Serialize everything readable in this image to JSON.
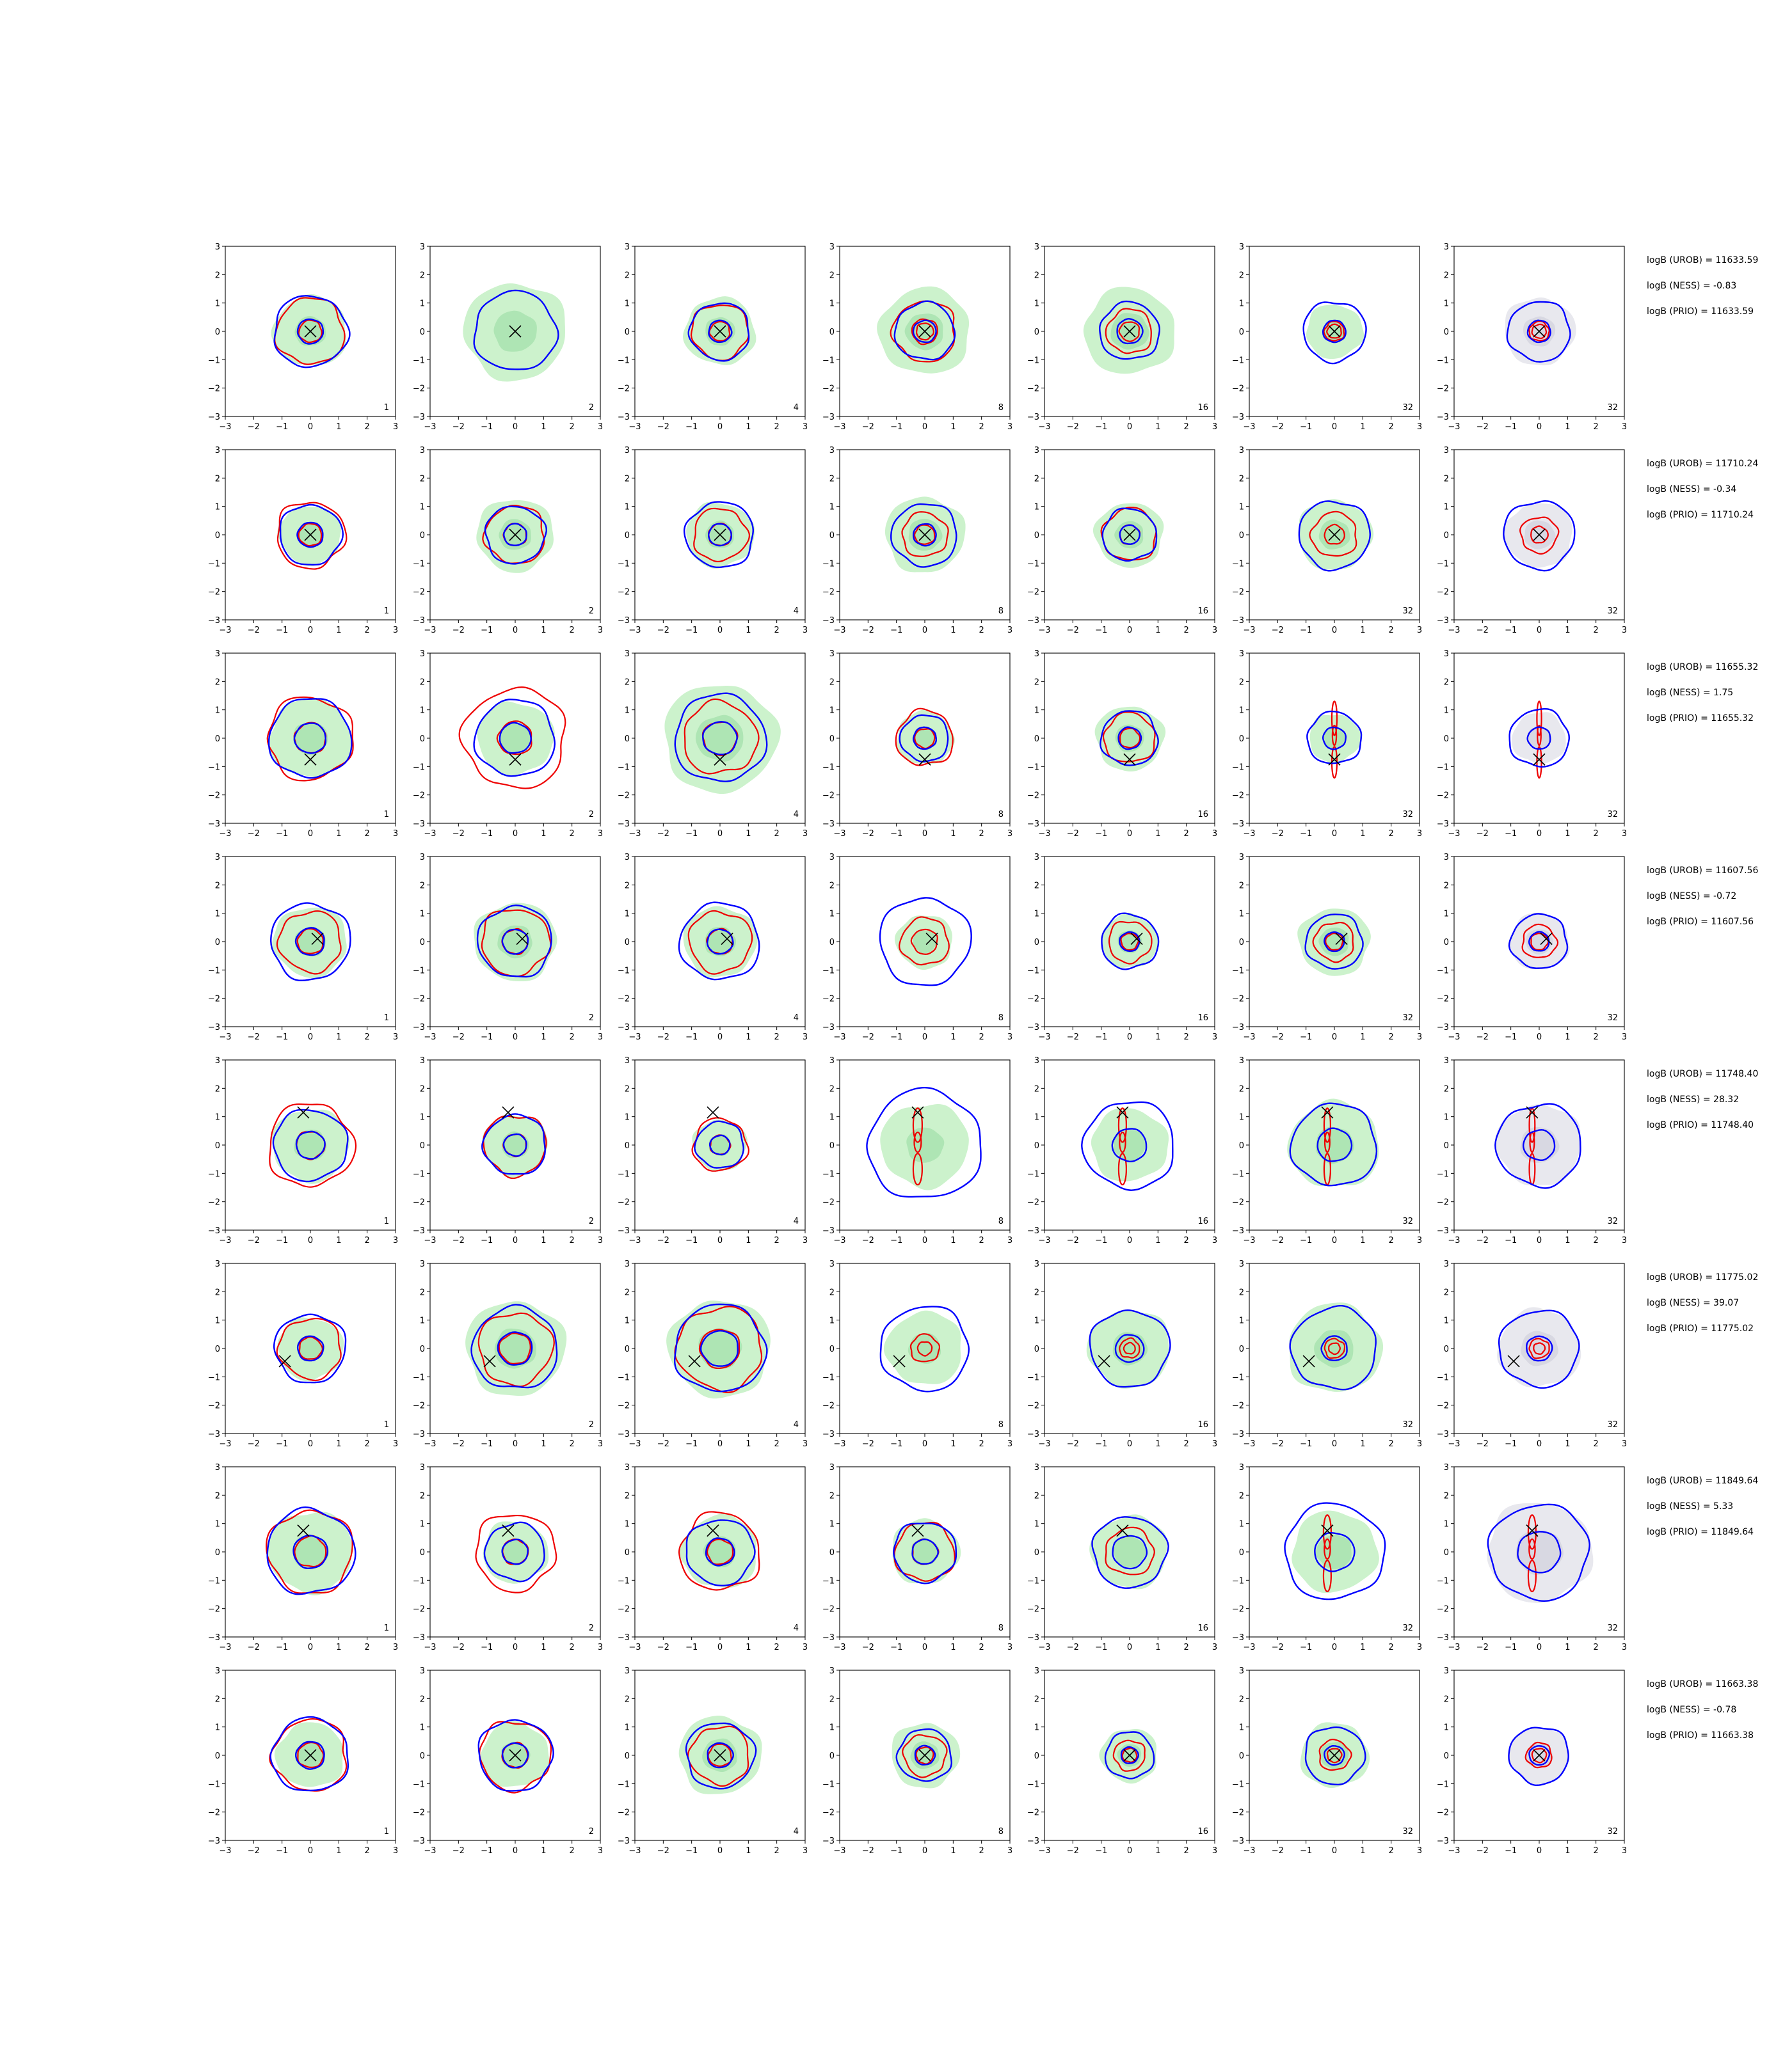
{
  "figure": {
    "rows": 8,
    "cols": 7,
    "xlim": [
      -3,
      3
    ],
    "ylim": [
      -3,
      3
    ],
    "ticks": [
      "−3",
      "−2",
      "−1",
      "0",
      "1",
      "2",
      "3"
    ],
    "tick_values": [
      -3,
      -2,
      -1,
      0,
      1,
      2,
      3
    ],
    "column_labels": [
      "1",
      "2",
      "4",
      "8",
      "16",
      "32",
      "32"
    ],
    "colors": {
      "blue": "#0000ff",
      "red": "#ee0000",
      "green_fill": "#ccf2cc",
      "green_core": "#aee5b4",
      "gray_fill": "#e8e8ee",
      "gray_core": "#d8d8e2",
      "marker": "#000000"
    }
  },
  "chart_data": {
    "type": "contour-grid",
    "panels_per_row": 7,
    "rows": [
      {
        "logb_urob": "logB (UROB) = 11633.59",
        "logb_ness": "logB (NESS) = -0.83",
        "logb_prio": "logB (PRIO) = 11633.59",
        "marker": [
          0.0,
          0.0
        ],
        "panels": [
          {
            "green": 1.3,
            "blue": [
              1.3,
              0.45
            ],
            "red": [
              1.2,
              0.4
            ]
          },
          {
            "green": 1.8,
            "blue": [
              1.45
            ],
            "red": []
          },
          {
            "green": 1.25,
            "blue": [
              1.05,
              0.4
            ],
            "red": [
              1.0,
              0.35
            ]
          },
          {
            "green": 1.6,
            "blue": [
              1.05,
              0.4
            ],
            "red": [
              1.1,
              0.45,
              0.3
            ]
          },
          {
            "green": 1.6,
            "blue": [
              1.05,
              0.45
            ],
            "red": [
              0.8,
              0.35
            ]
          },
          {
            "green": 1.0,
            "blue": [
              1.1,
              0.4
            ],
            "red": [
              0.35,
              0.25
            ]
          },
          {
            "gray": 1.25,
            "blue": [
              1.1,
              0.4
            ],
            "red": [
              0.35,
              0.25
            ]
          }
        ]
      },
      {
        "logb_urob": "logB (UROB) = 11710.24",
        "logb_ness": "logB (NESS) = -0.34",
        "logb_prio": "logB (PRIO) = 11710.24",
        "marker": [
          0.0,
          0.0
        ],
        "panels": [
          {
            "green": 1.1,
            "blue": [
              1.1,
              0.45
            ],
            "red": [
              1.2,
              0.4
            ]
          },
          {
            "green": 1.35,
            "blue": [
              1.05,
              0.4
            ],
            "red": [
              1.05,
              0.4
            ]
          },
          {
            "green": 1.2,
            "blue": [
              1.2,
              0.4
            ],
            "red": [
              0.95,
              0.4
            ]
          },
          {
            "green": 1.4,
            "blue": [
              1.15,
              0.4
            ],
            "red": [
              0.8,
              0.35
            ]
          },
          {
            "green": 1.2,
            "blue": [
              0.95,
              0.35
            ],
            "red": [
              0.95,
              0.35
            ]
          },
          {
            "green": 1.3,
            "blue": [
              1.25
            ],
            "red": [
              0.8,
              0.35
            ]
          },
          {
            "gray": 1.2,
            "blue": [
              1.25
            ],
            "red": [
              0.65,
              0.3
            ]
          }
        ]
      },
      {
        "logb_urob": "logB (UROB) = 11655.32",
        "logb_ness": "logB (NESS) = 1.75",
        "logb_prio": "logB (PRIO) = 11655.32",
        "marker": [
          0.0,
          -0.75
        ],
        "panels": [
          {
            "green": 1.45,
            "blue": [
              1.45,
              0.55
            ],
            "red": [
              1.5,
              0.55
            ]
          },
          {
            "green": 1.35,
            "blue": [
              1.4,
              0.55
            ],
            "red": [
              1.8,
              0.6
            ]
          },
          {
            "green": 2.0,
            "blue": [
              1.6,
              0.6
            ],
            "red": [
              1.3,
              0.6
            ]
          },
          {
            "green": 1.0,
            "blue": [
              0.85,
              0.4
            ],
            "red": [
              1.0,
              0.35
            ]
          },
          {
            "green": 1.2,
            "blue": [
              1.0,
              0.4
            ],
            "red": [
              0.9,
              0.35
            ]
          },
          {
            "green": 0.9,
            "blue": [
              0.95,
              0.4
            ],
            "red": [
              0.2
            ]
          },
          {
            "gray": 0.95,
            "blue": [
              1.05,
              0.4
            ],
            "red": [
              0.18
            ]
          }
        ]
      },
      {
        "logb_urob": "logB (UROB) = 11607.56",
        "logb_ness": "logB (NESS) = -0.72",
        "logb_prio": "logB (PRIO) = 11607.56",
        "marker": [
          0.25,
          0.1
        ],
        "panels": [
          {
            "green": 1.3,
            "blue": [
              1.4,
              0.5
            ],
            "red": [
              1.1,
              0.45
            ]
          },
          {
            "green": 1.45,
            "blue": [
              1.3,
              0.45
            ],
            "red": [
              1.2,
              0.45
            ]
          },
          {
            "green": 1.3,
            "blue": [
              1.4,
              0.45
            ],
            "red": [
              1.1,
              0.45
            ]
          },
          {
            "green": 1.0,
            "blue": [
              1.6
            ],
            "red": [
              0.85,
              0.45
            ]
          },
          {
            "green": 1.0,
            "blue": [
              1.0,
              0.35
            ],
            "red": [
              0.75,
              0.3
            ]
          },
          {
            "green": 1.25,
            "blue": [
              1.0,
              0.35
            ],
            "red": [
              0.7,
              0.3
            ]
          },
          {
            "gray": 1.05,
            "blue": [
              1.0,
              0.35
            ],
            "red": [
              0.6,
              0.3
            ]
          }
        ]
      },
      {
        "logb_urob": "logB (UROB) = 11748.40",
        "logb_ness": "logB (NESS) = 28.32",
        "logb_prio": "logB (PRIO) = 11748.40",
        "marker": [
          -0.25,
          1.15
        ],
        "panels": [
          {
            "green": 1.35,
            "blue": [
              1.3,
              0.5
            ],
            "red": [
              1.5,
              0.5
            ]
          },
          {
            "green": 1.15,
            "blue": [
              1.1,
              0.4
            ],
            "red": [
              1.1,
              0.4
            ]
          },
          {
            "green": 0.95,
            "blue": [
              0.85,
              0.35
            ],
            "red": [
              0.95,
              0.35
            ]
          },
          {
            "green": 1.55,
            "blue": [
              2.0
            ],
            "red": [
              0.35
            ]
          },
          {
            "green": 1.35,
            "blue": [
              1.6,
              0.6
            ],
            "red": [
              0.3
            ]
          },
          {
            "green": 1.6,
            "blue": [
              1.5,
              0.6
            ],
            "red": [
              0.25
            ]
          },
          {
            "gray": 1.5,
            "blue": [
              1.5,
              0.55
            ],
            "red": [
              0.22
            ]
          }
        ]
      },
      {
        "logb_urob": "logB (UROB) = 11775.02",
        "logb_ness": "logB (NESS) = 39.07",
        "logb_prio": "logB (PRIO) = 11775.02",
        "marker": [
          -0.9,
          -0.45
        ],
        "panels": [
          {
            "green": 1.15,
            "blue": [
              1.25,
              0.45
            ],
            "red": [
              1.1,
              0.4
            ]
          },
          {
            "green": 1.75,
            "blue": [
              1.5,
              0.6
            ],
            "red": [
              1.3,
              0.55
            ]
          },
          {
            "green": 1.8,
            "blue": [
              1.6,
              0.65
            ],
            "red": [
              1.5,
              0.7
            ]
          },
          {
            "green": 1.35,
            "blue": [
              1.55
            ],
            "red": [
              0.5,
              0.25
            ]
          },
          {
            "green": 1.45,
            "blue": [
              1.4,
              0.5
            ],
            "red": [
              0.35,
              0.2
            ]
          },
          {
            "green": 1.65,
            "blue": [
              1.5,
              0.45
            ],
            "red": [
              0.35,
              0.2
            ]
          },
          {
            "gray": 1.45,
            "blue": [
              1.4,
              0.45
            ],
            "red": [
              0.35,
              0.2
            ]
          }
        ]
      },
      {
        "logb_urob": "logB (UROB) = 11849.64",
        "logb_ness": "logB (NESS) = 5.33",
        "logb_prio": "logB (PRIO) = 11849.64",
        "marker": [
          -0.25,
          0.75
        ],
        "panels": [
          {
            "green": 1.5,
            "blue": [
              1.55,
              0.6
            ],
            "red": [
              1.5,
              0.55
            ]
          },
          {
            "green": 1.15,
            "blue": [
              1.05,
              0.45
            ],
            "red": [
              1.4,
              0.45
            ]
          },
          {
            "green": 1.35,
            "blue": [
              1.2,
              0.5
            ],
            "red": [
              1.4,
              0.45
            ]
          },
          {
            "green": 1.2,
            "blue": [
              1.1,
              0.45
            ],
            "red": [
              1.05,
              0.45
            ]
          },
          {
            "green": 1.35,
            "blue": [
              1.3,
              0.6
            ],
            "red": [
              0.85
            ]
          },
          {
            "green": 1.5,
            "blue": [
              1.75,
              0.7
            ],
            "red": [
              0.3
            ]
          },
          {
            "gray": 1.85,
            "blue": [
              1.75,
              0.75
            ],
            "red": [
              0.3
            ]
          }
        ]
      },
      {
        "logb_urob": "logB (UROB) = 11663.38",
        "logb_ness": "logB (NESS) = -0.78",
        "logb_prio": "logB (PRIO) = 11663.38",
        "marker": [
          0.0,
          0.0
        ],
        "panels": [
          {
            "green": 1.2,
            "blue": [
              1.35,
              0.5
            ],
            "red": [
              1.3,
              0.45
            ]
          },
          {
            "green": 1.2,
            "blue": [
              1.3,
              0.45
            ],
            "red": [
              1.25,
              0.45
            ]
          },
          {
            "green": 1.45,
            "blue": [
              1.2,
              0.45
            ],
            "red": [
              1.05,
              0.4
            ]
          },
          {
            "green": 1.2,
            "blue": [
              0.95,
              0.35
            ],
            "red": [
              0.75,
              0.3
            ]
          },
          {
            "green": 1.0,
            "blue": [
              0.85,
              0.3
            ],
            "red": [
              0.55,
              0.25
            ]
          },
          {
            "green": 1.2,
            "blue": [
              1.05,
              0.35
            ],
            "red": [
              0.55,
              0.25
            ]
          },
          {
            "gray": 1.05,
            "blue": [
              1.05,
              0.35
            ],
            "red": [
              0.45,
              0.25
            ]
          }
        ]
      }
    ]
  }
}
